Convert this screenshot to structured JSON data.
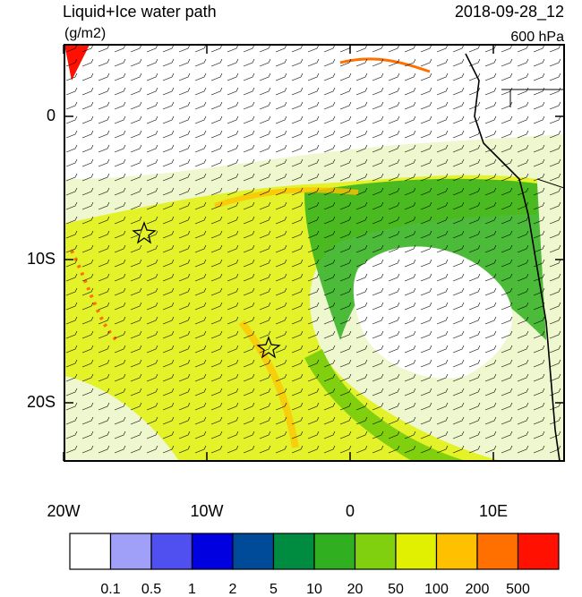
{
  "title": "Liquid+Ice water path",
  "date": "2018-09-28_12",
  "units": "(g/m2)",
  "level": "600 hPa",
  "lat_ticks": [
    {
      "value": 0,
      "label": "0"
    },
    {
      "value": -10,
      "label": "10S"
    },
    {
      "value": -20,
      "label": "20S"
    }
  ],
  "lon_ticks": [
    {
      "value": -20,
      "label": "20W"
    },
    {
      "value": -10,
      "label": "10W"
    },
    {
      "value": 0,
      "label": "0"
    },
    {
      "value": 10,
      "label": "10E"
    }
  ],
  "colorbar": {
    "colors": [
      "#ffffff",
      "#a0a0f8",
      "#5050f0",
      "#0000e0",
      "#004a9a",
      "#008c40",
      "#30b020",
      "#80d010",
      "#e0f000",
      "#ffc000",
      "#ff7000",
      "#ff1000"
    ],
    "labels": [
      0.1,
      0.5,
      1,
      2,
      5,
      10,
      20,
      50,
      100,
      200,
      500
    ]
  }
}
